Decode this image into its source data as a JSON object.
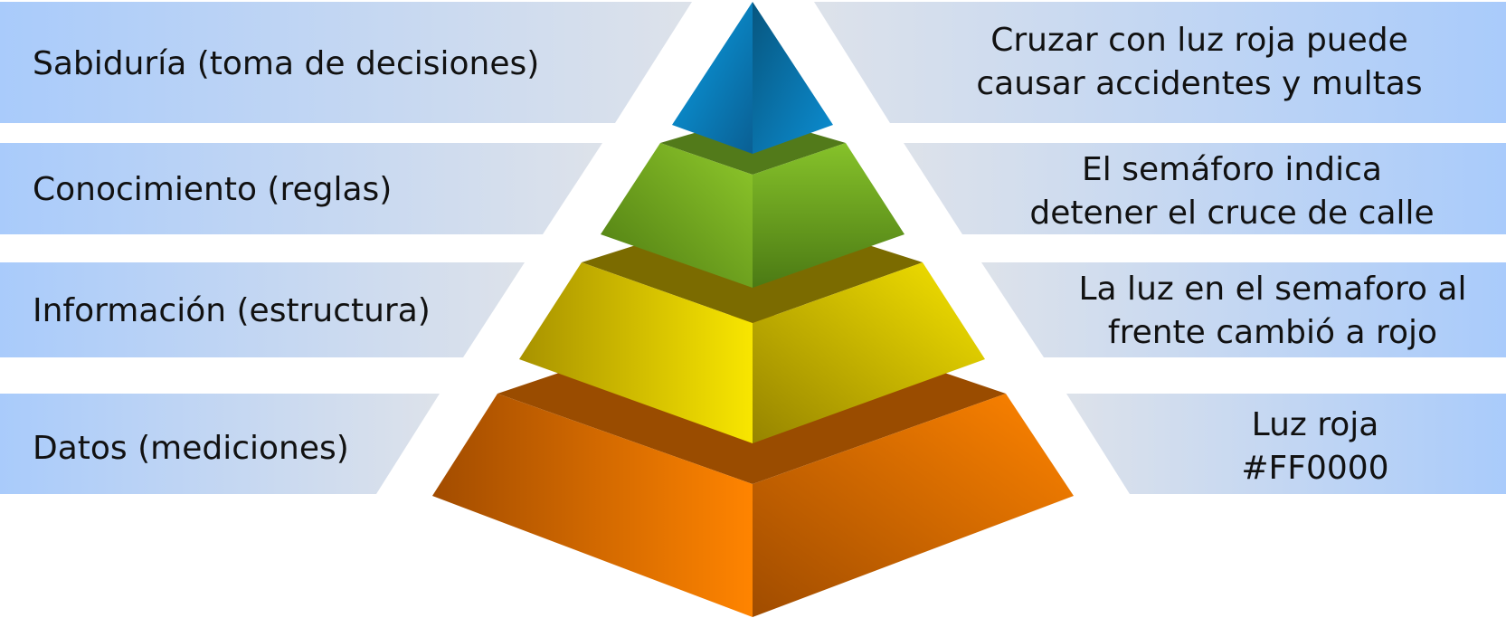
{
  "colors": {
    "band_dark": "#a9cbfb",
    "band_light": "#d9dfe9",
    "tier_top": "#0c87cc",
    "tier_knowledge": "#86c22a",
    "tier_information": "#f2e000",
    "tier_data": "#ff8000",
    "text": "#111111"
  },
  "levels": [
    {
      "left_label": "Sabiduría (toma de decisiones)",
      "right_lines": [
        "Cruzar con luz roja puede",
        "causar accidentes y multas"
      ]
    },
    {
      "left_label": "Conocimiento (reglas)",
      "right_lines": [
        "El semáforo indica",
        "detener el cruce de calle"
      ]
    },
    {
      "left_label": "Información (estructura)",
      "right_lines": [
        "La luz en el semaforo al",
        "frente cambió a rojo"
      ]
    },
    {
      "left_label": "Datos (mediciones)",
      "right_lines": [
        "Luz roja",
        "#FF0000"
      ]
    }
  ]
}
